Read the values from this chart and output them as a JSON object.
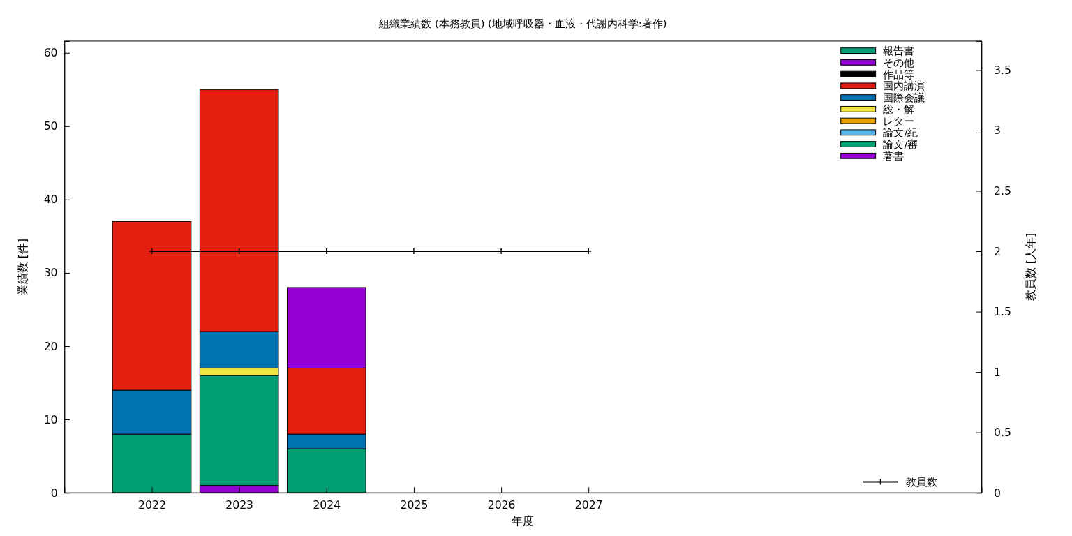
{
  "chart_data": {
    "type": "bar",
    "title": "組織業績数 (本務教員) (地域呼吸器・血液・代謝内科学:著作)",
    "xlabel": "年度",
    "ylabel": "業績数 [件]",
    "y2label": "教員数 [人年]",
    "x": [
      2022,
      2023,
      2024,
      2025,
      2026,
      2027
    ],
    "xlim": [
      2021,
      2031.5
    ],
    "xticks": [
      2022,
      2023,
      2024,
      2025,
      2026,
      2027
    ],
    "stacked": true,
    "series": [
      {
        "name": "著書",
        "color": "#9400d3",
        "values": [
          0,
          1,
          0,
          0,
          0,
          0
        ]
      },
      {
        "name": "論文/審",
        "color": "#009e73",
        "values": [
          8,
          15,
          6,
          0,
          0,
          0
        ]
      },
      {
        "name": "論文/紀",
        "color": "#56b4e9",
        "values": [
          0,
          0,
          0,
          0,
          0,
          0
        ]
      },
      {
        "name": "レター",
        "color": "#e69f00",
        "values": [
          0,
          0,
          0,
          0,
          0,
          0
        ]
      },
      {
        "name": "総・解",
        "color": "#f0e442",
        "values": [
          0,
          1,
          0,
          0,
          0,
          0
        ]
      },
      {
        "name": "国際会議",
        "color": "#0072b2",
        "values": [
          6,
          5,
          2,
          0,
          0,
          0
        ]
      },
      {
        "name": "国内講演",
        "color": "#e51e10",
        "values": [
          23,
          33,
          9,
          0,
          0,
          0
        ]
      },
      {
        "name": "作品等",
        "color": "#000000",
        "values": [
          0,
          0,
          0,
          0,
          0,
          0
        ]
      },
      {
        "name": "その他",
        "color": "#9400d3",
        "values": [
          0,
          0,
          11,
          0,
          0,
          0
        ]
      },
      {
        "name": "報告書",
        "color": "#009e73",
        "values": [
          0,
          0,
          0,
          0,
          0,
          0
        ]
      },
      {
        "name": "教員数",
        "type": "line",
        "axis": "y2",
        "color": "#000000",
        "marker": "cross",
        "values": [
          2,
          2,
          2,
          2,
          2,
          2
        ]
      }
    ],
    "ylim": [
      0,
      61.6
    ],
    "yticks": [
      0,
      10,
      20,
      30,
      40,
      50,
      60
    ],
    "y2lim": [
      0,
      3.74
    ],
    "y2ticks": [
      0,
      0.5,
      1,
      1.5,
      2,
      2.5,
      3,
      3.5
    ],
    "legend": "top right",
    "grid": false
  }
}
